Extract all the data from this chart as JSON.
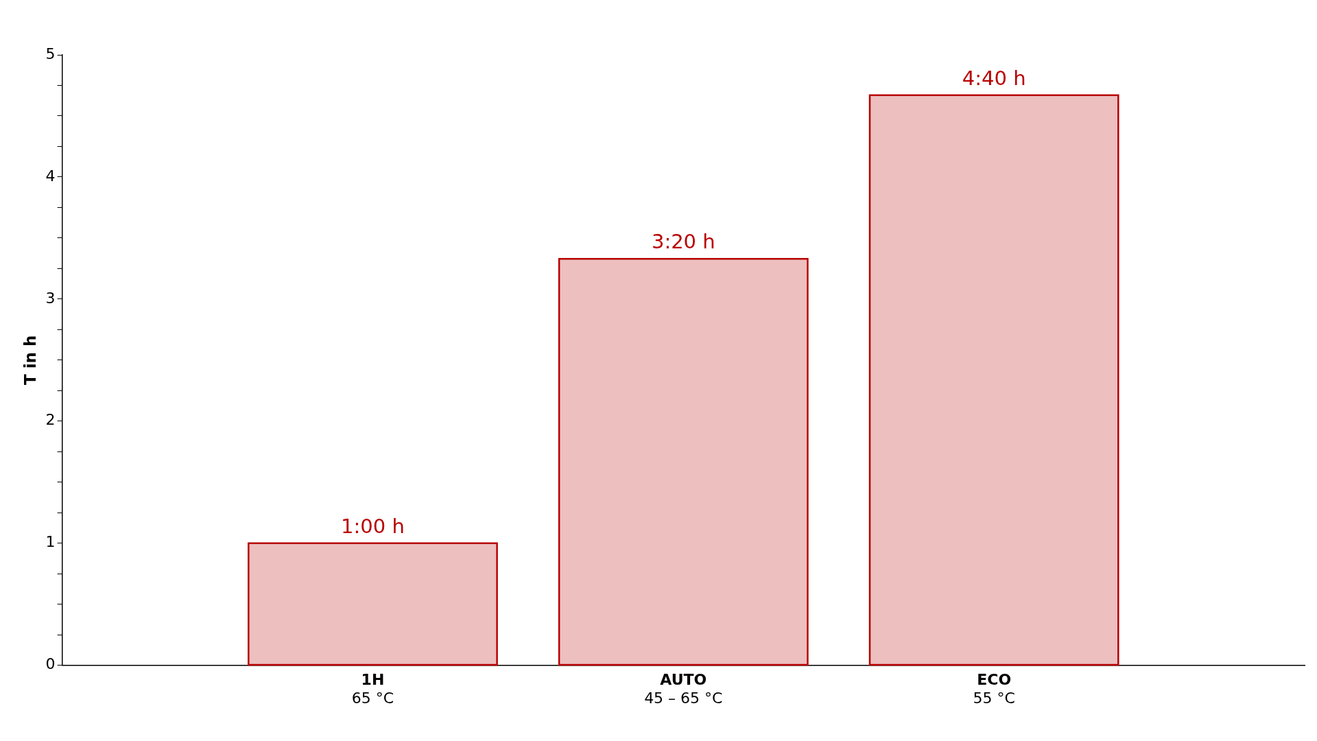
{
  "chart_data": {
    "type": "bar",
    "ylabel": "T in h",
    "categories": [
      "1H\n65 °C",
      "AUTO\n45 – 65 °C",
      "ECO\n55 °C"
    ],
    "values": [
      1,
      3.33,
      4.67
    ],
    "color": "#b80000",
    "value_labels": [
      "1:00 h",
      "3:20 h",
      "4:40 h"
    ],
    "ylim": [
      0,
      5
    ],
    "yticks": [
      0,
      {
        "value": 0.25,
        "label": null
      },
      {
        "value": 0.5,
        "label": null
      },
      {
        "value": 0.75,
        "label": null
      },
      1,
      {
        "value": 1.25,
        "label": null
      },
      {
        "value": 1.5,
        "label": null
      },
      {
        "value": 1.75,
        "label": null
      },
      2,
      {
        "value": 2.25,
        "label": null
      },
      {
        "value": 2.5,
        "label": null
      },
      {
        "value": 2.75,
        "label": null
      },
      3,
      {
        "value": 3.25,
        "label": null
      },
      {
        "value": 3.5,
        "label": null
      },
      {
        "value": 3.75,
        "label": null
      },
      4,
      {
        "value": 4.25,
        "label": null
      },
      {
        "value": 4.5,
        "label": null
      },
      {
        "value": 4.75,
        "label": null
      },
      5
    ],
    "grid": false,
    "legend": false
  }
}
